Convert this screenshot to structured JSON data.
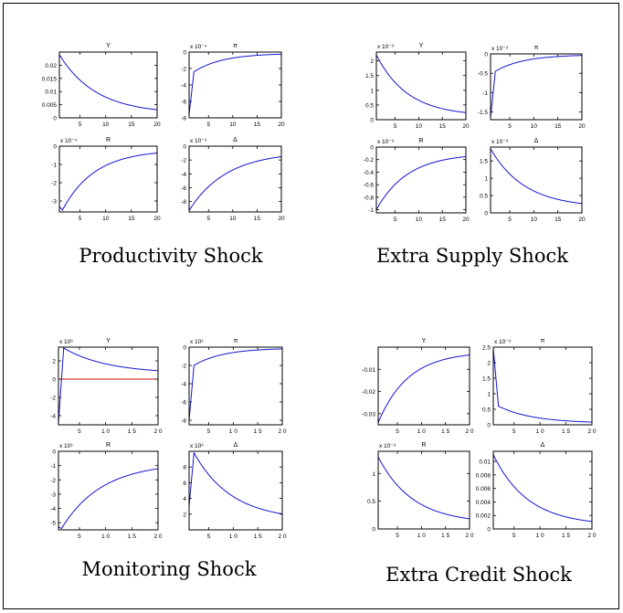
{
  "colors": {
    "curve": "#1414d2",
    "zero_line": "#d21414",
    "frame": "#000000"
  },
  "panels": [
    {
      "caption": "Productivity Shock"
    },
    {
      "caption": "Extra Supply Shock"
    },
    {
      "caption": "Monitoring Shock"
    },
    {
      "caption": "Extra Credit Shock"
    }
  ],
  "chart_data": [
    {
      "type": "line",
      "panel": 0,
      "title": "Y",
      "exponent": "",
      "x": [
        1,
        20
      ],
      "xticks": [
        5,
        10,
        15,
        20
      ],
      "xticklabels": [
        "5",
        "10",
        "15",
        "20"
      ],
      "ylim": [
        0,
        0.025
      ],
      "yticks": [
        0,
        0.005,
        0.01,
        0.015,
        0.02
      ],
      "yticklabels": [
        "0",
        "0.005",
        "0.01",
        "0.015",
        "0.02"
      ],
      "zero_line": true,
      "series": [
        {
          "kind": "decay",
          "start": 0.024,
          "end": 0.0015,
          "rate": 0.14
        }
      ]
    },
    {
      "type": "line",
      "panel": 0,
      "title": "π",
      "exponent": "x 10⁻⁴",
      "x": [
        1,
        20
      ],
      "xticks": [
        5,
        10,
        15,
        20
      ],
      "xticklabels": [
        "5",
        "10",
        "15",
        "20"
      ],
      "ylim": [
        -8,
        0
      ],
      "yticks": [
        -8,
        -6,
        -4,
        -2,
        0
      ],
      "yticklabels": [
        "-8",
        "-6",
        "-4",
        "-2",
        "0"
      ],
      "zero_line": true,
      "series": [
        {
          "kind": "jump",
          "start": -7.6,
          "after": -2.4,
          "end": -0.15,
          "rate": 0.17
        }
      ]
    },
    {
      "type": "line",
      "panel": 0,
      "title": "R",
      "exponent": "x 10⁻⁴",
      "x": [
        1,
        20
      ],
      "xticks": [
        5,
        10,
        15,
        20
      ],
      "xticklabels": [
        "5",
        "10",
        "15",
        "20"
      ],
      "ylim": [
        -3.6,
        0
      ],
      "yticks": [
        -3,
        -2,
        -1,
        0
      ],
      "yticklabels": [
        "-3",
        "-2",
        "-1",
        "0"
      ],
      "zero_line": true,
      "series": [
        {
          "kind": "hump",
          "start": -3.3,
          "peak": -3.5,
          "end": -0.2,
          "rate": 0.16
        }
      ]
    },
    {
      "type": "line",
      "panel": 0,
      "title": "Δ",
      "exponent": "x 10⁻³",
      "x": [
        1,
        20
      ],
      "xticks": [
        5,
        10,
        15,
        20
      ],
      "xticklabels": [
        "5",
        "10",
        "15",
        "20"
      ],
      "ylim": [
        -9.5,
        0
      ],
      "yticks": [
        -8,
        -6,
        -4,
        -2,
        0
      ],
      "yticklabels": [
        "-8",
        "-6",
        "-4",
        "-2",
        "0"
      ],
      "zero_line": true,
      "series": [
        {
          "kind": "decay",
          "start": -9.3,
          "end": -0.8,
          "rate": 0.13
        }
      ]
    },
    {
      "type": "line",
      "panel": 1,
      "title": "Y",
      "exponent": "x 10⁻³",
      "x": [
        1,
        20
      ],
      "xticks": [
        5,
        10,
        15,
        20
      ],
      "xticklabels": [
        "5",
        "10",
        "15",
        "20"
      ],
      "ylim": [
        0,
        2.3
      ],
      "yticks": [
        0,
        0.5,
        1,
        1.5,
        2
      ],
      "yticklabels": [
        "0",
        "0.5",
        "1",
        "1.5",
        "2"
      ],
      "zero_line": true,
      "series": [
        {
          "kind": "decay",
          "start": 2.2,
          "end": 0.12,
          "rate": 0.15
        }
      ]
    },
    {
      "type": "line",
      "panel": 1,
      "title": "π",
      "exponent": "x 10⁻³",
      "x": [
        1,
        20
      ],
      "xticks": [
        5,
        10,
        15,
        20
      ],
      "xticklabels": [
        "5",
        "10",
        "15",
        "20"
      ],
      "ylim": [
        -1.7,
        0
      ],
      "yticks": [
        -1.5,
        -1,
        -0.5,
        0
      ],
      "yticklabels": [
        "-1.5",
        "-1",
        "-0.5",
        "0"
      ],
      "zero_line": true,
      "series": [
        {
          "kind": "jump",
          "start": -1.65,
          "after": -0.45,
          "end": -0.02,
          "rate": 0.17
        }
      ]
    },
    {
      "type": "line",
      "panel": 1,
      "title": "R",
      "exponent": "x 10⁻³",
      "x": [
        1,
        20
      ],
      "xticks": [
        5,
        10,
        15,
        20
      ],
      "xticklabels": [
        "5",
        "10",
        "15",
        "20"
      ],
      "ylim": [
        -1.05,
        0
      ],
      "yticks": [
        -1,
        -0.8,
        -0.6,
        -0.4,
        -0.2,
        0
      ],
      "yticklabels": [
        "-1",
        "-0.8",
        "-0.6",
        "-0.4",
        "-0.2",
        "0"
      ],
      "zero_line": true,
      "series": [
        {
          "kind": "decay",
          "start": -1.0,
          "end": -0.1,
          "rate": 0.15
        }
      ]
    },
    {
      "type": "line",
      "panel": 1,
      "title": "Δ",
      "exponent": "x 10⁻³",
      "x": [
        1,
        20
      ],
      "xticks": [
        5,
        10,
        15,
        20
      ],
      "xticklabels": [
        "5",
        "10",
        "15",
        "20"
      ],
      "ylim": [
        0,
        1.9
      ],
      "yticks": [
        0,
        0.5,
        1,
        1.5
      ],
      "yticklabels": [
        "0",
        "0.5",
        "1",
        "1.5"
      ],
      "zero_line": true,
      "series": [
        {
          "kind": "decay",
          "start": 1.85,
          "end": 0.15,
          "rate": 0.14
        }
      ]
    },
    {
      "type": "line",
      "panel": 2,
      "title": "Y",
      "exponent": "x 10⁶",
      "x": [
        1,
        20
      ],
      "xticks": [
        5,
        10,
        15,
        20
      ],
      "xticklabels": [
        "5",
        "1 0",
        "1 5",
        "2 0"
      ],
      "ylim": [
        -5,
        3.5
      ],
      "yticks": [
        -4,
        -2,
        0,
        2
      ],
      "yticklabels": [
        "-4",
        "-2",
        "0",
        "2"
      ],
      "zero_line": true,
      "series": [
        {
          "kind": "spike",
          "start": -4.8,
          "peak": 3.4,
          "end": 0.6,
          "rate": 0.12
        }
      ]
    },
    {
      "type": "line",
      "panel": 2,
      "title": "π",
      "exponent": "x 10³",
      "x": [
        1,
        20
      ],
      "xticks": [
        5,
        10,
        15,
        20
      ],
      "xticklabels": [
        "5",
        "1 0",
        "1 5",
        "2 0"
      ],
      "ylim": [
        -8.5,
        0
      ],
      "yticks": [
        -8,
        -6,
        -4,
        -2,
        0
      ],
      "yticklabels": [
        "-8",
        "-6",
        "-4",
        "-2",
        "0"
      ],
      "zero_line": true,
      "series": [
        {
          "kind": "jump",
          "start": -8.0,
          "after": -2.0,
          "end": -0.1,
          "rate": 0.17
        }
      ]
    },
    {
      "type": "line",
      "panel": 2,
      "title": "R",
      "exponent": "x 10³",
      "x": [
        1,
        20
      ],
      "xticks": [
        5,
        10,
        15,
        20
      ],
      "xticklabels": [
        "5",
        "1 0",
        "1 5",
        "2 0"
      ],
      "ylim": [
        -5.5,
        0
      ],
      "yticks": [
        -5,
        -4,
        -3,
        -2,
        -1,
        0
      ],
      "yticklabels": [
        "-5",
        "-4",
        "-3",
        "-2",
        "-1",
        "0"
      ],
      "zero_line": true,
      "series": [
        {
          "kind": "hump",
          "start": -5.3,
          "peak": -5.4,
          "end": -0.8,
          "rate": 0.13
        }
      ]
    },
    {
      "type": "line",
      "panel": 2,
      "title": "Δ",
      "exponent": "x 10⁶",
      "x": [
        1,
        20
      ],
      "xticks": [
        5,
        10,
        15,
        20
      ],
      "xticklabels": [
        "5",
        "1 0",
        "1 5",
        "2 0"
      ],
      "ylim": [
        0,
        10
      ],
      "yticks": [
        2,
        4,
        6,
        8
      ],
      "yticklabels": [
        "2",
        "4",
        "6",
        "8"
      ],
      "zero_line": true,
      "series": [
        {
          "kind": "spike",
          "start": 3.0,
          "peak": 9.8,
          "end": 1.2,
          "rate": 0.13
        }
      ]
    },
    {
      "type": "line",
      "panel": 3,
      "title": "Y",
      "exponent": "",
      "x": [
        1,
        20
      ],
      "xticks": [
        5,
        10,
        15,
        20
      ],
      "xticklabels": [
        "5",
        "1 0",
        "1 5",
        "2 0"
      ],
      "ylim": [
        -0.035,
        0
      ],
      "yticks": [
        -0.03,
        -0.02,
        -0.01
      ],
      "yticklabels": [
        "-0.03",
        "-0.02",
        "-0.01"
      ],
      "zero_line": false,
      "series": [
        {
          "kind": "decay",
          "start": -0.034,
          "end": -0.002,
          "rate": 0.16
        }
      ]
    },
    {
      "type": "line",
      "panel": 3,
      "title": "π",
      "exponent": "x 10⁻³",
      "x": [
        1,
        20
      ],
      "xticks": [
        5,
        10,
        15,
        20
      ],
      "xticklabels": [
        "5",
        "1 0",
        "1 5",
        "2 0"
      ],
      "ylim": [
        0,
        2.5
      ],
      "yticks": [
        0,
        0.5,
        1,
        1.5,
        2,
        2.5
      ],
      "yticklabels": [
        "0",
        "0.5",
        "1",
        "1.5",
        "2",
        "2.5"
      ],
      "zero_line": true,
      "series": [
        {
          "kind": "jump",
          "start": 2.45,
          "after": 0.6,
          "end": 0.05,
          "rate": 0.15
        }
      ]
    },
    {
      "type": "line",
      "panel": 3,
      "title": "R",
      "exponent": "x 10⁻³",
      "x": [
        1,
        20
      ],
      "xticks": [
        5,
        10,
        15,
        20
      ],
      "xticklabels": [
        "5",
        "1 0",
        "1 5",
        "2 0"
      ],
      "ylim": [
        0,
        1.4
      ],
      "yticks": [
        0,
        0.5,
        1
      ],
      "yticklabels": [
        "0",
        "0.5",
        "1"
      ],
      "zero_line": true,
      "series": [
        {
          "kind": "decay",
          "start": 1.3,
          "end": 0.1,
          "rate": 0.14
        }
      ]
    },
    {
      "type": "line",
      "panel": 3,
      "title": "Δ",
      "exponent": "",
      "x": [
        1,
        20
      ],
      "xticks": [
        5,
        10,
        15,
        20
      ],
      "xticklabels": [
        "5",
        "1 0",
        "1 5",
        "2 0"
      ],
      "ylim": [
        0,
        0.0115
      ],
      "yticks": [
        0,
        0.002,
        0.004,
        0.006,
        0.008,
        0.01
      ],
      "yticklabels": [
        "0",
        "0.002",
        "0.004",
        "0.006",
        "0.008",
        "0.01"
      ],
      "zero_line": true,
      "series": [
        {
          "kind": "decay",
          "start": 0.011,
          "end": 0.0005,
          "rate": 0.15
        }
      ]
    }
  ]
}
